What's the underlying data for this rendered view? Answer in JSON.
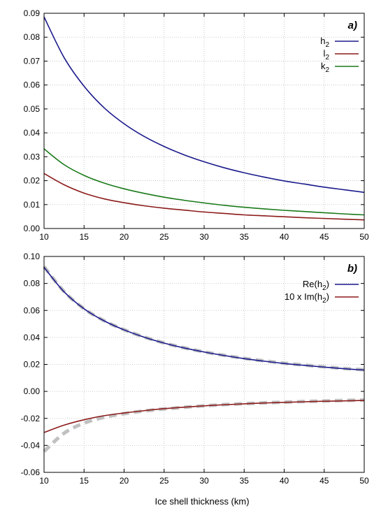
{
  "chart_data": [
    {
      "panel": "a)",
      "type": "line",
      "xlim": [
        10,
        50
      ],
      "ylim": [
        0,
        0.09
      ],
      "xticks": [
        "10",
        "15",
        "20",
        "25",
        "30",
        "35",
        "40",
        "45",
        "50"
      ],
      "yticks": [
        "0.00",
        "0.01",
        "0.02",
        "0.03",
        "0.04",
        "0.05",
        "0.06",
        "0.07",
        "0.08",
        "0.09"
      ],
      "grid": true,
      "legend": "top-right",
      "x": [
        10,
        12.5,
        15,
        17.5,
        20,
        22.5,
        25,
        27.5,
        30,
        32.5,
        35,
        37.5,
        40,
        42.5,
        45,
        47.5,
        50
      ],
      "series": [
        {
          "name": "h",
          "sub": "2",
          "color": "#1a1a8c",
          "values": [
            0.0885,
            0.0715,
            0.0595,
            0.0505,
            0.0438,
            0.0385,
            0.0343,
            0.0308,
            0.0279,
            0.0254,
            0.0233,
            0.0215,
            0.0199,
            0.0186,
            0.0173,
            0.0162,
            0.0151
          ]
        },
        {
          "name": "l",
          "sub": "2",
          "color": "#8c1a1a",
          "values": [
            0.023,
            0.0183,
            0.0148,
            0.0124,
            0.0108,
            0.0095,
            0.0085,
            0.0077,
            0.0069,
            0.0063,
            0.0057,
            0.0053,
            0.0049,
            0.0045,
            0.0042,
            0.0039,
            0.0036
          ]
        },
        {
          "name": "k",
          "sub": "2",
          "color": "#1a7a1a",
          "values": [
            0.0333,
            0.0267,
            0.0222,
            0.019,
            0.0166,
            0.0147,
            0.0131,
            0.0118,
            0.0107,
            0.0097,
            0.0089,
            0.0082,
            0.0076,
            0.0071,
            0.0066,
            0.0061,
            0.0057
          ]
        }
      ]
    },
    {
      "panel": "b)",
      "type": "line",
      "xlim": [
        10,
        50
      ],
      "ylim": [
        -0.06,
        0.1
      ],
      "xticks": [
        "10",
        "15",
        "20",
        "25",
        "30",
        "35",
        "40",
        "45",
        "50"
      ],
      "yticks": [
        "-0.06",
        "-0.04",
        "-0.02",
        "0.00",
        "0.02",
        "0.04",
        "0.06",
        "0.08",
        "0.10"
      ],
      "xlabel": "Ice shell thickness (km)",
      "grid": true,
      "legend": "top-right",
      "x": [
        10,
        12.5,
        15,
        17.5,
        20,
        22.5,
        25,
        27.5,
        30,
        32.5,
        35,
        37.5,
        40,
        42.5,
        45,
        47.5,
        50
      ],
      "series": [
        {
          "name": "Re(h",
          "sub": "2",
          "suffix": ")",
          "color": "#1a1a8c",
          "values": [
            0.092,
            0.0738,
            0.0612,
            0.0523,
            0.0456,
            0.0402,
            0.0358,
            0.0322,
            0.0292,
            0.0266,
            0.0243,
            0.0224,
            0.0207,
            0.0193,
            0.018,
            0.0168,
            0.0158
          ]
        },
        {
          "name": "10 x Im(h",
          "sub": "2",
          "suffix": ")",
          "color": "#8c1a1a",
          "values": [
            -0.0305,
            -0.025,
            -0.021,
            -0.018,
            -0.016,
            -0.0143,
            -0.0128,
            -0.0117,
            -0.0107,
            -0.0099,
            -0.0092,
            -0.0086,
            -0.0081,
            -0.0077,
            -0.0073,
            -0.007,
            -0.0067
          ]
        }
      ],
      "dashed_series": [
        {
          "color": "#c0c0c0",
          "values": [
            0.0925,
            0.074,
            0.0613,
            0.0524,
            0.0457,
            0.0403,
            0.0359,
            0.0323,
            0.0293,
            0.0267,
            0.0245,
            0.0226,
            0.0209,
            0.0195,
            0.0182,
            0.017,
            0.016
          ]
        },
        {
          "color": "#c0c0c0",
          "values": [
            -0.0445,
            -0.031,
            -0.0235,
            -0.0192,
            -0.0165,
            -0.0145,
            -0.013,
            -0.0118,
            -0.0107,
            -0.0098,
            -0.0091,
            -0.0085,
            -0.008,
            -0.0075,
            -0.0071,
            -0.0067,
            -0.0064
          ]
        }
      ]
    }
  ]
}
